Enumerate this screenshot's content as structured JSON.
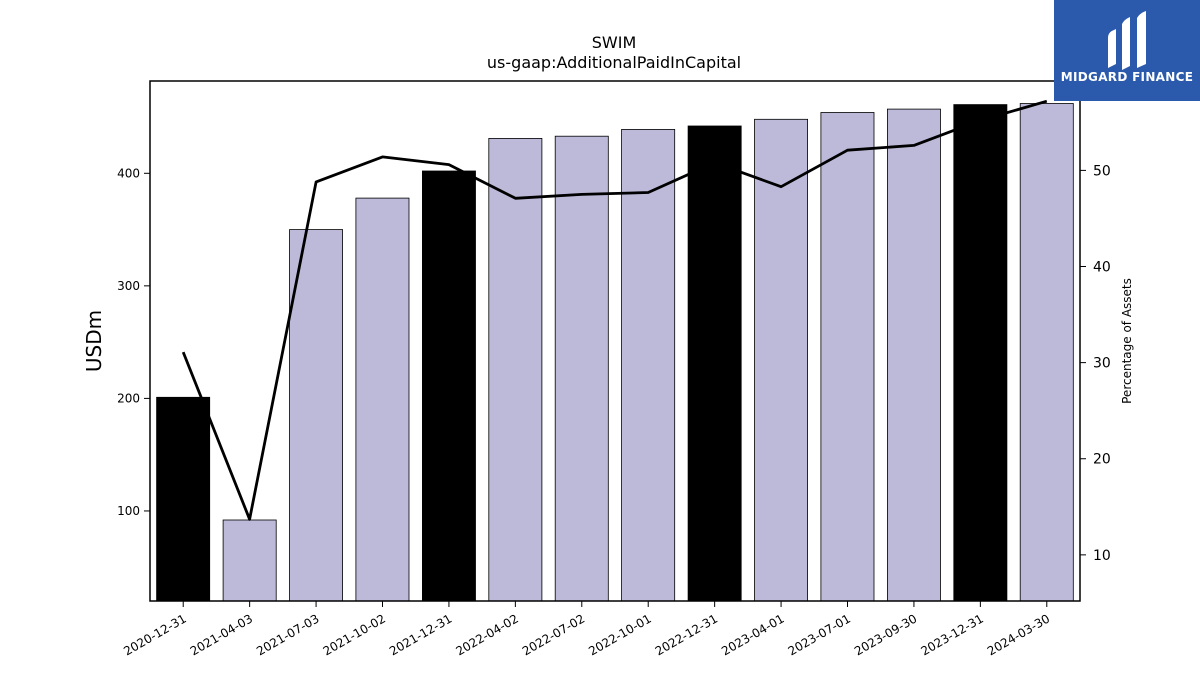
{
  "chart_data": {
    "type": "bar",
    "title": "SWIM",
    "subtitle": "us-gaap:AdditionalPaidInCapital",
    "ylabel": "USDm",
    "y2label": "Percentage of Assets",
    "categories": [
      "2020-12-31",
      "2021-04-03",
      "2021-07-03",
      "2021-10-02",
      "2021-12-31",
      "2022-04-02",
      "2022-07-02",
      "2022-10-01",
      "2022-12-31",
      "2023-04-01",
      "2023-07-01",
      "2023-09-30",
      "2023-12-31",
      "2024-03-30"
    ],
    "series": [
      {
        "type": "bar",
        "values": [
          201,
          92,
          350,
          378,
          402,
          431,
          433,
          439,
          442,
          448,
          454,
          457,
          461,
          462
        ],
        "colors": [
          "#000000",
          "#bdbad9",
          "#bdbad9",
          "#bdbad9",
          "#000000",
          "#bdbad9",
          "#bdbad9",
          "#bdbad9",
          "#000000",
          "#bdbad9",
          "#bdbad9",
          "#bdbad9",
          "#000000",
          "#bdbad9"
        ],
        "axis": "left"
      },
      {
        "type": "line",
        "values": [
          31.1,
          13.7,
          48.8,
          51.4,
          50.6,
          47.1,
          47.5,
          47.7,
          50.8,
          48.3,
          52.1,
          52.6,
          55.2,
          57.2
        ],
        "color": "#000000",
        "axis": "right"
      }
    ],
    "ylim": [
      20,
      482
    ],
    "yticks": [
      100,
      200,
      300,
      400
    ],
    "y2lim": [
      5.2,
      59.3
    ],
    "y2ticks": [
      10,
      20,
      30,
      40,
      50
    ],
    "grid": false,
    "legend": "none"
  },
  "logo": {
    "text": "MIDGARD FINANCE",
    "bg_color": "#2b5aad"
  }
}
